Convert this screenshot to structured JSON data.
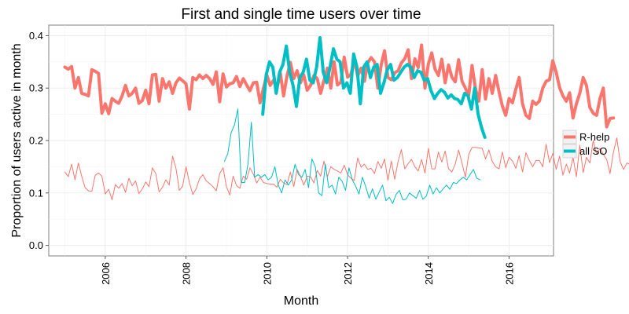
{
  "chart_data": {
    "type": "line",
    "title": "First and single time users over time",
    "xlabel": "Month",
    "ylabel": "Proportion of users active in month",
    "xlim": [
      2004.6,
      2017.1
    ],
    "ylim": [
      -0.02,
      0.42
    ],
    "x_ticks": [
      "2006",
      "2008",
      "2010",
      "2012",
      "2014",
      "2016"
    ],
    "y_ticks": [
      "0.0",
      "0.1",
      "0.2",
      "0.3",
      "0.4"
    ],
    "grid": true,
    "legend_position": "right",
    "legend": [
      {
        "name": "R-help",
        "color": "#F8766D"
      },
      {
        "name": "all SO",
        "color": "#00BFC4"
      }
    ],
    "series": [
      {
        "name": "R-help",
        "group": "first-time",
        "color": "#F8766D",
        "start": 2005.0,
        "step": 0.0833333,
        "values": [
          0.34,
          0.336,
          0.341,
          0.3,
          0.32,
          0.29,
          0.288,
          0.285,
          0.335,
          0.332,
          0.328,
          0.252,
          0.27,
          0.251,
          0.28,
          0.275,
          0.271,
          0.285,
          0.305,
          0.285,
          0.29,
          0.3,
          0.271,
          0.276,
          0.296,
          0.27,
          0.325,
          0.326,
          0.275,
          0.318,
          0.3,
          0.312,
          0.29,
          0.31,
          0.319,
          0.314,
          0.308,
          0.26,
          0.32,
          0.316,
          0.325,
          0.318,
          0.324,
          0.318,
          0.307,
          0.331,
          0.274,
          0.327,
          0.302,
          0.308,
          0.31,
          0.322,
          0.303,
          0.318,
          0.306,
          0.295,
          0.31,
          0.311,
          0.272,
          0.3,
          0.325,
          0.305,
          0.315,
          0.299,
          0.329,
          0.285,
          0.323,
          0.349,
          0.318,
          0.333,
          0.31,
          0.325,
          0.296,
          0.305,
          0.324,
          0.318,
          0.29,
          0.315,
          0.338,
          0.3,
          0.35,
          0.306,
          0.311,
          0.359,
          0.321,
          0.326,
          0.352,
          0.323,
          0.338,
          0.313,
          0.348,
          0.358,
          0.35,
          0.3,
          0.345,
          0.371,
          0.32,
          0.316,
          0.329,
          0.333,
          0.348,
          0.356,
          0.373,
          0.318,
          0.356,
          0.339,
          0.382,
          0.3,
          0.346,
          0.367,
          0.336,
          0.324,
          0.355,
          0.31,
          0.344,
          0.321,
          0.312,
          0.354,
          0.313,
          0.3,
          0.286,
          0.343,
          0.299,
          0.275,
          0.335,
          0.279,
          0.318,
          0.29,
          0.324,
          0.293,
          0.266,
          0.248,
          0.28,
          0.272,
          0.298,
          0.32,
          0.27,
          0.248,
          0.242,
          0.275,
          0.269,
          0.275,
          0.3,
          0.313,
          0.316,
          0.352,
          0.33,
          0.301,
          0.285,
          0.275,
          0.291,
          0.243,
          0.27,
          0.29,
          0.32,
          0.305,
          0.263,
          0.252,
          0.248,
          0.28,
          0.3,
          0.226,
          0.242,
          0.243
        ],
        "width": 4
      },
      {
        "name": "all SO",
        "group": "first-time",
        "color": "#00BFC4",
        "start": 2009.9,
        "step": 0.0833333,
        "values": [
          0.25,
          0.325,
          0.35,
          0.34,
          0.29,
          0.33,
          0.345,
          0.38,
          0.33,
          0.305,
          0.265,
          0.32,
          0.33,
          0.355,
          0.315,
          0.31,
          0.34,
          0.396,
          0.33,
          0.31,
          0.34,
          0.375,
          0.355,
          0.35,
          0.3,
          0.31,
          0.29,
          0.365,
          0.34,
          0.27,
          0.34,
          0.35,
          0.32,
          0.34,
          0.345,
          0.29,
          0.31,
          0.335,
          0.345,
          0.315,
          0.32,
          0.33,
          0.34,
          0.345,
          0.34,
          0.32,
          0.333,
          0.33,
          0.315,
          0.318,
          0.295,
          0.28,
          0.29,
          0.297,
          0.292,
          0.281,
          0.287,
          0.28,
          0.278,
          0.27,
          0.29,
          0.285,
          0.26,
          0.3,
          0.25,
          0.225,
          0.206
        ],
        "width": 4
      },
      {
        "name": "R-help",
        "group": "single-time",
        "color": "#F8766D",
        "start": 2005.0,
        "step": 0.0833333,
        "values": [
          0.14,
          0.131,
          0.155,
          0.125,
          0.157,
          0.132,
          0.11,
          0.104,
          0.103,
          0.134,
          0.138,
          0.132,
          0.098,
          0.107,
          0.087,
          0.116,
          0.109,
          0.118,
          0.101,
          0.128,
          0.114,
          0.123,
          0.099,
          0.108,
          0.121,
          0.112,
          0.148,
          0.137,
          0.102,
          0.111,
          0.125,
          0.115,
          0.17,
          0.147,
          0.105,
          0.113,
          0.15,
          0.12,
          0.097,
          0.108,
          0.127,
          0.135,
          0.123,
          0.118,
          0.112,
          0.104,
          0.137,
          0.148,
          0.112,
          0.096,
          0.132,
          0.114,
          0.109,
          0.132,
          0.126,
          0.148,
          0.136,
          0.119,
          0.13,
          0.12,
          0.118,
          0.117,
          0.117,
          0.111,
          0.126,
          0.119,
          0.116,
          0.14,
          0.112,
          0.145,
          0.132,
          0.115,
          0.132,
          0.131,
          0.119,
          0.143,
          0.132,
          0.161,
          0.131,
          0.15,
          0.145,
          0.142,
          0.138,
          0.153,
          0.135,
          0.128,
          0.124,
          0.167,
          0.149,
          0.155,
          0.145,
          0.147,
          0.137,
          0.16,
          0.147,
          0.165,
          0.124,
          0.161,
          0.126,
          0.16,
          0.183,
          0.146,
          0.156,
          0.164,
          0.15,
          0.142,
          0.164,
          0.138,
          0.185,
          0.146,
          0.146,
          0.178,
          0.159,
          0.18,
          0.146,
          0.14,
          0.155,
          0.182,
          0.157,
          0.13,
          0.173,
          0.187,
          0.187,
          0.186,
          0.185,
          0.165,
          0.182,
          0.16,
          0.15,
          0.146,
          0.178,
          0.148,
          0.168,
          0.161,
          0.147,
          0.171,
          0.14,
          0.177,
          0.162,
          0.15,
          0.162,
          0.162,
          0.15,
          0.193,
          0.158,
          0.175,
          0.145,
          0.17,
          0.134,
          0.155,
          0.138,
          0.168,
          0.131,
          0.191,
          0.139,
          0.168,
          0.157,
          0.2,
          0.174,
          0.185,
          0.174,
          0.164,
          0.137,
          0.178,
          0.205,
          0.16,
          0.145,
          0.157,
          0.155,
          0.17,
          0.14,
          0.152,
          0.163,
          0.145,
          0.147,
          0.155,
          0.143,
          0.158,
          0.178
        ],
        "width": 1
      },
      {
        "name": "all SO",
        "group": "single-time",
        "color": "#00BFC4",
        "start": 2008.95,
        "step": 0.0833333,
        "values": [
          0.16,
          0.175,
          0.215,
          0.23,
          0.26,
          0.12,
          0.12,
          0.155,
          0.235,
          0.13,
          0.135,
          0.13,
          0.135,
          0.125,
          0.13,
          0.15,
          0.115,
          0.1,
          0.125,
          0.115,
          0.125,
          0.155,
          0.135,
          0.13,
          0.145,
          0.11,
          0.165,
          0.15,
          0.1,
          0.095,
          0.155,
          0.11,
          0.115,
          0.098,
          0.13,
          0.122,
          0.105,
          0.148,
          0.125,
          0.113,
          0.098,
          0.13,
          0.112,
          0.09,
          0.108,
          0.088,
          0.102,
          0.115,
          0.085,
          0.092,
          0.08,
          0.097,
          0.105,
          0.087,
          0.088,
          0.1,
          0.095,
          0.09,
          0.105,
          0.088,
          0.094,
          0.115,
          0.098,
          0.11,
          0.1,
          0.108,
          0.115,
          0.107,
          0.12,
          0.118,
          0.125,
          0.13,
          0.125,
          0.135,
          0.145,
          0.128,
          0.125
        ]
      }
    ]
  }
}
